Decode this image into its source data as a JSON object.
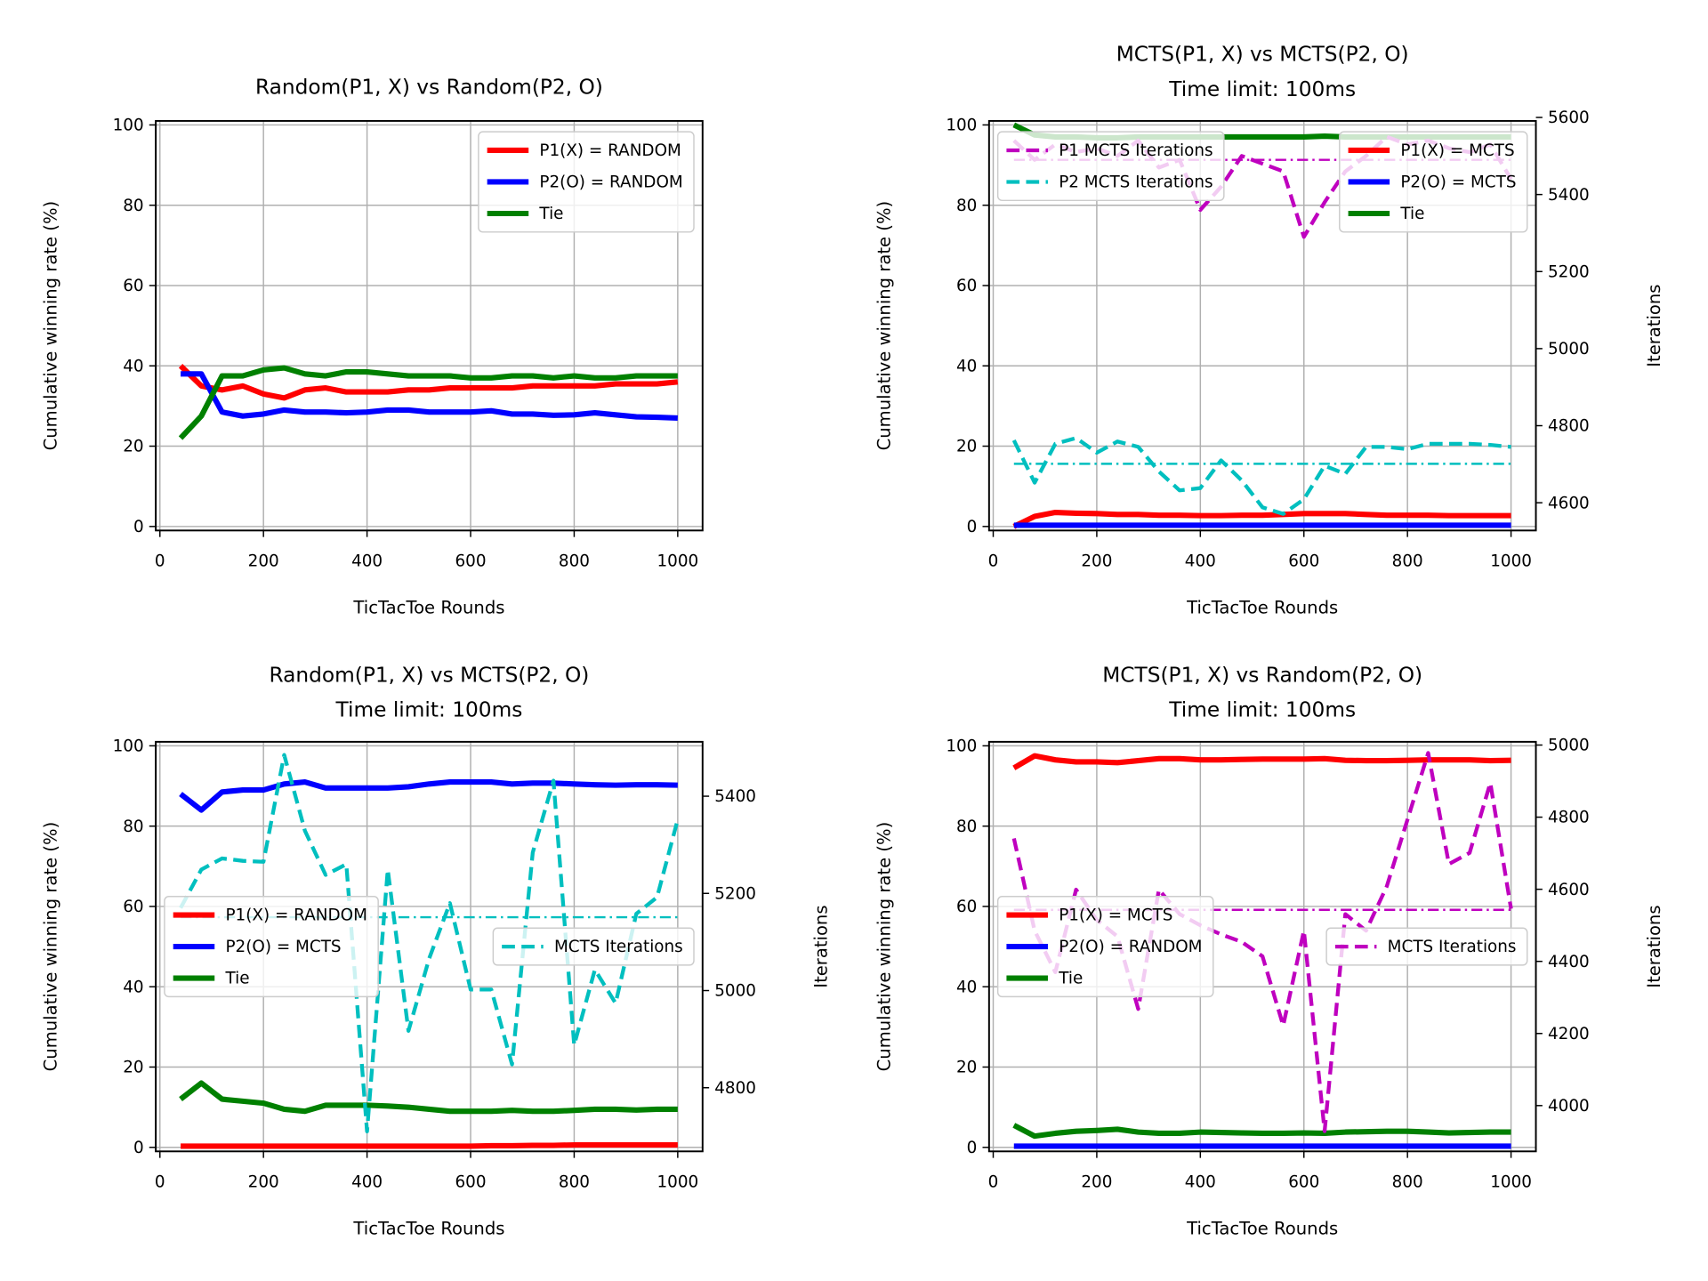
{
  "chart_data": [
    {
      "type": "line",
      "title": "Random(P1, X) vs Random(P2, O)",
      "xlabel": "TicTacToe Rounds",
      "ylabel": "Cumulative winning rate (%)",
      "x": [
        40,
        80,
        120,
        160,
        200,
        240,
        280,
        320,
        360,
        400,
        440,
        480,
        520,
        560,
        600,
        640,
        680,
        720,
        760,
        800,
        840,
        880,
        920,
        960,
        1000
      ],
      "xlim": [
        -8,
        1048
      ],
      "xticks": [
        0,
        200,
        400,
        600,
        800,
        1000
      ],
      "ylim": [
        -1,
        101
      ],
      "yticks": [
        0,
        20,
        40,
        60,
        80,
        100
      ],
      "grid": true,
      "legend": "upper right",
      "series": [
        {
          "name": "P1(X) = RANDOM",
          "color": "#ff0000",
          "values": [
            40,
            35,
            34,
            35,
            33,
            32,
            34,
            34.5,
            33.5,
            33.5,
            33.5,
            34,
            34,
            34.5,
            34.5,
            34.5,
            34.5,
            35,
            35,
            35,
            35,
            35.5,
            35.5,
            35.5,
            36
          ]
        },
        {
          "name": "P2(O) = RANDOM",
          "color": "#0000ff",
          "values": [
            38,
            38,
            28.5,
            27.5,
            28,
            29,
            28.5,
            28.5,
            28.3,
            28.5,
            29,
            29,
            28.5,
            28.5,
            28.5,
            28.8,
            28,
            28,
            27.7,
            27.8,
            28.3,
            27.8,
            27.3,
            27.2,
            27
          ]
        },
        {
          "name": "Tie",
          "color": "#008000",
          "values": [
            22,
            27.5,
            37.5,
            37.5,
            39,
            39.5,
            38,
            37.5,
            38.5,
            38.5,
            38,
            37.5,
            37.5,
            37.5,
            37,
            37,
            37.5,
            37.5,
            37,
            37.5,
            37,
            37,
            37.5,
            37.5,
            37.5
          ]
        }
      ]
    },
    {
      "type": "line",
      "title": "MCTS(P1, X) vs MCTS(P2, O)",
      "subtitle": "Time limit: 100ms",
      "xlabel": "TicTacToe Rounds",
      "ylabel": "Cumulative winning rate (%)",
      "y2label": "Iterations",
      "x": [
        40,
        80,
        120,
        160,
        200,
        240,
        280,
        320,
        360,
        400,
        440,
        480,
        520,
        560,
        600,
        640,
        680,
        720,
        760,
        800,
        840,
        880,
        920,
        960,
        1000
      ],
      "xlim": [
        -8,
        1048
      ],
      "xticks": [
        0,
        200,
        400,
        600,
        800,
        1000
      ],
      "ylim": [
        -1,
        101
      ],
      "yticks": [
        0,
        20,
        40,
        60,
        80,
        100
      ],
      "y2lim": [
        4528,
        5591
      ],
      "y2ticks": [
        4600,
        4800,
        5000,
        5200,
        5400,
        5600
      ],
      "grid": true,
      "legend": "upper right",
      "legend2": "upper left",
      "series": [
        {
          "name": "P1(X) = MCTS",
          "color": "#ff0000",
          "values": [
            0,
            2.5,
            3.5,
            3.3,
            3.2,
            3,
            3,
            2.8,
            2.8,
            2.7,
            2.7,
            2.8,
            2.8,
            3,
            3.2,
            3.2,
            3.2,
            3,
            2.8,
            2.8,
            2.8,
            2.7,
            2.7,
            2.7,
            2.7
          ]
        },
        {
          "name": "P2(O) = MCTS",
          "color": "#0000ff",
          "values": [
            0.3,
            0.3,
            0.3,
            0.3,
            0.3,
            0.3,
            0.3,
            0.3,
            0.3,
            0.3,
            0.3,
            0.3,
            0.3,
            0.3,
            0.3,
            0.3,
            0.3,
            0.3,
            0.3,
            0.3,
            0.3,
            0.3,
            0.3,
            0.3,
            0.3
          ]
        },
        {
          "name": "Tie",
          "color": "#008000",
          "values": [
            100,
            97.5,
            97,
            97,
            96.8,
            96.8,
            97,
            97,
            97,
            97,
            97,
            97,
            97,
            97,
            97,
            97.2,
            97,
            97,
            97,
            97,
            97,
            97,
            97,
            97,
            97
          ]
        },
        {
          "name": "P1 MCTS Iterations",
          "color": "#bf00bf",
          "axis": "y2",
          "mean": 5490,
          "values": [
            5540,
            5490,
            5530,
            5510,
            5520,
            5500,
            5540,
            5470,
            5490,
            5360,
            5420,
            5500,
            5480,
            5460,
            5290,
            5380,
            5460,
            5500,
            5550,
            5530,
            5540,
            5520,
            5510,
            5530,
            5440
          ]
        },
        {
          "name": "P2 MCTS Iterations",
          "color": "#00bfbf",
          "axis": "y2",
          "mean": 4701,
          "values": [
            4762,
            4652,
            4753,
            4768,
            4730,
            4759,
            4745,
            4681,
            4632,
            4638,
            4710,
            4658,
            4588,
            4571,
            4609,
            4696,
            4675,
            4745,
            4745,
            4739,
            4753,
            4753,
            4753,
            4750,
            4745
          ]
        }
      ]
    },
    {
      "type": "line",
      "title": "Random(P1, X) vs MCTS(P2, O)",
      "subtitle": "Time limit: 100ms",
      "xlabel": "TicTacToe Rounds",
      "ylabel": "Cumulative winning rate (%)",
      "y2label": "Iterations",
      "x": [
        40,
        80,
        120,
        160,
        200,
        240,
        280,
        320,
        360,
        400,
        440,
        480,
        520,
        560,
        600,
        640,
        680,
        720,
        760,
        800,
        840,
        880,
        920,
        960,
        1000
      ],
      "xlim": [
        -8,
        1048
      ],
      "xticks": [
        0,
        200,
        400,
        600,
        800,
        1000
      ],
      "ylim": [
        -1,
        101
      ],
      "yticks": [
        0,
        20,
        40,
        60,
        80,
        100
      ],
      "y2lim": [
        4669,
        5512
      ],
      "y2ticks": [
        4800,
        5000,
        5200,
        5400
      ],
      "grid": true,
      "legend": "center left",
      "legend2": "center right",
      "series": [
        {
          "name": "P1(X) = RANDOM",
          "color": "#ff0000",
          "values": [
            0.3,
            0.3,
            0.3,
            0.3,
            0.3,
            0.3,
            0.3,
            0.3,
            0.3,
            0.3,
            0.3,
            0.3,
            0.3,
            0.3,
            0.3,
            0.4,
            0.4,
            0.5,
            0.5,
            0.6,
            0.6,
            0.6,
            0.6,
            0.6,
            0.6
          ]
        },
        {
          "name": "P2(O) = MCTS",
          "color": "#0000ff",
          "values": [
            88,
            84,
            88.5,
            89,
            89,
            90.5,
            91,
            89.5,
            89.5,
            89.5,
            89.5,
            89.8,
            90.5,
            91,
            91,
            91,
            90.5,
            90.7,
            90.7,
            90.5,
            90.3,
            90.2,
            90.3,
            90.3,
            90.2
          ]
        },
        {
          "name": "Tie",
          "color": "#008000",
          "values": [
            12,
            16,
            12,
            11.5,
            11,
            9.5,
            9,
            10.5,
            10.5,
            10.5,
            10.3,
            10,
            9.5,
            9,
            9,
            9,
            9.2,
            9,
            9,
            9.2,
            9.5,
            9.5,
            9.3,
            9.5,
            9.5
          ]
        },
        {
          "name": "MCTS Iterations",
          "color": "#00bfbf",
          "axis": "y2",
          "mean": 5151,
          "values": [
            5170,
            5249,
            5272,
            5267,
            5265,
            5485,
            5329,
            5238,
            5260,
            4710,
            5249,
            4917,
            5066,
            5180,
            5002,
            5002,
            4848,
            5284,
            5432,
            4888,
            5043,
            4974,
            5158,
            5192,
            5352
          ]
        }
      ]
    },
    {
      "type": "line",
      "title": "MCTS(P1, X) vs Random(P2, O)",
      "subtitle": "Time limit: 100ms",
      "xlabel": "TicTacToe Rounds",
      "ylabel": "Cumulative winning rate (%)",
      "y2label": "Iterations",
      "x": [
        40,
        80,
        120,
        160,
        200,
        240,
        280,
        320,
        360,
        400,
        440,
        480,
        520,
        560,
        600,
        640,
        680,
        720,
        760,
        800,
        840,
        880,
        920,
        960,
        1000
      ],
      "xlim": [
        -8,
        1048
      ],
      "xticks": [
        0,
        200,
        400,
        600,
        800,
        1000
      ],
      "ylim": [
        -1,
        101
      ],
      "yticks": [
        0,
        20,
        40,
        60,
        80,
        100
      ],
      "y2lim": [
        3873,
        5009
      ],
      "y2ticks": [
        4000,
        4200,
        4400,
        4600,
        4800,
        5000
      ],
      "grid": true,
      "legend": "center left",
      "legend2": "center right",
      "series": [
        {
          "name": "P1(X) = MCTS",
          "color": "#ff0000",
          "values": [
            94.5,
            97.5,
            96.5,
            96,
            96,
            95.8,
            96.3,
            96.8,
            96.8,
            96.5,
            96.5,
            96.6,
            96.7,
            96.7,
            96.7,
            96.8,
            96.4,
            96.3,
            96.3,
            96.4,
            96.5,
            96.5,
            96.5,
            96.3,
            96.4
          ]
        },
        {
          "name": "P2(O) = RANDOM",
          "color": "#0000ff",
          "values": [
            0.3,
            0.3,
            0.3,
            0.3,
            0.3,
            0.3,
            0.3,
            0.3,
            0.3,
            0.3,
            0.3,
            0.3,
            0.3,
            0.3,
            0.3,
            0.3,
            0.3,
            0.3,
            0.3,
            0.3,
            0.3,
            0.3,
            0.3,
            0.3,
            0.3
          ]
        },
        {
          "name": "Tie",
          "color": "#008000",
          "values": [
            5.5,
            2.8,
            3.5,
            4,
            4.2,
            4.5,
            3.8,
            3.5,
            3.5,
            3.8,
            3.7,
            3.6,
            3.5,
            3.5,
            3.6,
            3.5,
            3.8,
            3.9,
            4,
            4,
            3.8,
            3.6,
            3.7,
            3.8,
            3.8
          ]
        },
        {
          "name": "MCTS Iterations",
          "color": "#bf00bf",
          "axis": "y2",
          "mean": 4543,
          "values": [
            4741,
            4485,
            4370,
            4599,
            4515,
            4469,
            4268,
            4599,
            4531,
            4500,
            4475,
            4454,
            4414,
            4222,
            4485,
            3929,
            4531,
            4485,
            4608,
            4793,
            4978,
            4670,
            4701,
            4895,
            4546
          ]
        }
      ]
    }
  ]
}
